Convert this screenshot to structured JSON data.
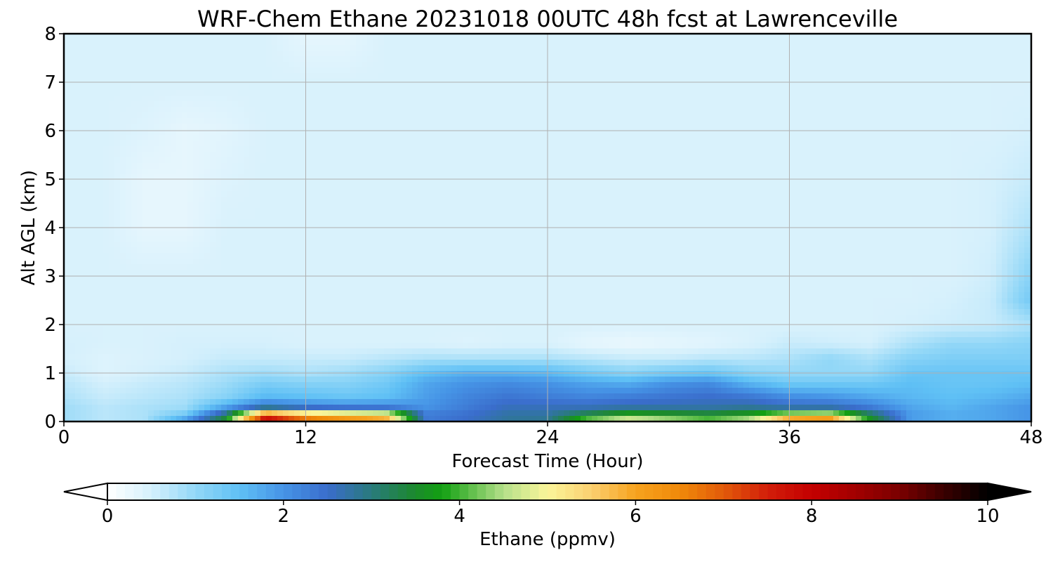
{
  "chart_data": {
    "type": "heatmap",
    "subtype": "filled-contour time-height cross section",
    "title": "WRF-Chem Ethane  20231018 00UTC 48h fcst at Lawrenceville",
    "xlabel": "Forecast Time (Hour)",
    "ylabel": "Alt AGL (km)",
    "xlim": [
      0,
      48
    ],
    "ylim": [
      0,
      8
    ],
    "xticks": [
      0,
      12,
      24,
      36,
      48
    ],
    "yticks": [
      0,
      1,
      2,
      3,
      4,
      5,
      6,
      7,
      8
    ],
    "grid": true,
    "colorbar": {
      "label": "Ethane  (ppmv)",
      "range": [
        0,
        10
      ],
      "ticks": [
        0,
        2,
        4,
        6,
        8,
        10
      ],
      "extend": "both",
      "orientation": "horizontal",
      "stops": [
        {
          "value": 0.0,
          "color": "#ffffff"
        },
        {
          "value": 0.5,
          "color": "#d5f0fc"
        },
        {
          "value": 1.0,
          "color": "#92d7f7"
        },
        {
          "value": 1.5,
          "color": "#5fc0f5"
        },
        {
          "value": 2.0,
          "color": "#4694e6"
        },
        {
          "value": 2.5,
          "color": "#3a6dcc"
        },
        {
          "value": 3.0,
          "color": "#297a7c"
        },
        {
          "value": 3.5,
          "color": "#1c8a2c"
        },
        {
          "value": 3.8,
          "color": "#12a012"
        },
        {
          "value": 4.5,
          "color": "#b5e08a"
        },
        {
          "value": 5.0,
          "color": "#fbf59a"
        },
        {
          "value": 5.5,
          "color": "#fbd070"
        },
        {
          "value": 6.0,
          "color": "#f7a21e"
        },
        {
          "value": 6.5,
          "color": "#f08a0a"
        },
        {
          "value": 7.0,
          "color": "#e25a0a"
        },
        {
          "value": 7.5,
          "color": "#d21e0a"
        },
        {
          "value": 8.0,
          "color": "#c40000"
        },
        {
          "value": 8.5,
          "color": "#a20000"
        },
        {
          "value": 9.0,
          "color": "#7a0000"
        },
        {
          "value": 9.5,
          "color": "#3a0000"
        },
        {
          "value": 10.0,
          "color": "#000000"
        }
      ]
    },
    "z_grid": {
      "x": [
        0,
        2,
        4,
        6,
        8,
        10,
        12,
        14,
        16,
        18,
        20,
        22,
        24,
        26,
        28,
        30,
        32,
        34,
        36,
        38,
        40,
        42,
        44,
        46,
        48
      ],
      "y": [
        0,
        0.1,
        0.2,
        0.3,
        0.5,
        0.8,
        1.0,
        1.3,
        1.6,
        2.0,
        2.5,
        3.0,
        4.0,
        5.0,
        6.0,
        7.0,
        8.0
      ],
      "z": [
        [
          0.9,
          0.7,
          0.8,
          2.1,
          3.6,
          8.2,
          7.0,
          6.4,
          6.0,
          2.3,
          2.5,
          2.8,
          2.9,
          4.4,
          5.1,
          4.8,
          4.3,
          4.9,
          6.6,
          6.8,
          3.8,
          1.9,
          1.7,
          1.8,
          2.0
        ],
        [
          0.9,
          0.7,
          0.8,
          1.5,
          3.3,
          7.5,
          6.4,
          6.0,
          5.7,
          2.3,
          2.5,
          2.8,
          2.8,
          3.8,
          4.3,
          4.0,
          3.8,
          4.1,
          5.4,
          5.6,
          3.5,
          1.9,
          1.7,
          1.8,
          2.0
        ],
        [
          0.9,
          0.7,
          0.8,
          1.1,
          2.6,
          5.2,
          4.6,
          4.4,
          4.2,
          2.2,
          2.4,
          2.7,
          2.7,
          3.0,
          3.4,
          3.3,
          3.2,
          3.4,
          3.8,
          3.9,
          2.9,
          1.9,
          1.7,
          1.8,
          2.0
        ],
        [
          0.9,
          0.7,
          0.8,
          0.9,
          1.8,
          2.6,
          2.3,
          2.2,
          2.2,
          2.0,
          2.3,
          2.6,
          2.6,
          2.6,
          2.7,
          2.7,
          2.7,
          2.8,
          2.6,
          2.6,
          2.3,
          1.8,
          1.6,
          1.8,
          2.0
        ],
        [
          0.8,
          0.6,
          0.7,
          0.8,
          1.1,
          1.6,
          1.5,
          1.4,
          1.5,
          1.9,
          2.2,
          2.4,
          2.3,
          2.2,
          2.3,
          2.4,
          2.5,
          2.4,
          2.1,
          2.0,
          1.8,
          1.6,
          1.5,
          1.6,
          1.8
        ],
        [
          0.7,
          0.5,
          0.6,
          0.7,
          0.9,
          1.2,
          1.1,
          1.1,
          1.3,
          1.8,
          2.0,
          2.1,
          2.0,
          1.8,
          1.7,
          2.0,
          2.1,
          1.6,
          1.3,
          1.3,
          1.3,
          1.5,
          1.4,
          1.4,
          1.5
        ],
        [
          0.6,
          0.4,
          0.5,
          0.6,
          0.8,
          0.9,
          0.8,
          0.9,
          1.1,
          1.5,
          1.7,
          1.7,
          1.6,
          1.3,
          1.1,
          1.3,
          1.4,
          1.1,
          1.0,
          1.0,
          1.0,
          1.4,
          1.4,
          1.4,
          1.4
        ],
        [
          0.5,
          0.4,
          0.45,
          0.5,
          0.6,
          0.6,
          0.6,
          0.6,
          0.7,
          0.8,
          0.8,
          0.8,
          0.8,
          0.7,
          0.6,
          0.6,
          0.7,
          0.7,
          0.8,
          1.0,
          0.8,
          1.1,
          1.2,
          1.2,
          1.2
        ],
        [
          0.5,
          0.45,
          0.45,
          0.5,
          0.5,
          0.5,
          0.45,
          0.45,
          0.45,
          0.45,
          0.4,
          0.45,
          0.45,
          0.3,
          0.25,
          0.3,
          0.35,
          0.45,
          0.6,
          0.55,
          0.5,
          0.8,
          1.0,
          1.0,
          1.1
        ],
        [
          0.45,
          0.45,
          0.45,
          0.45,
          0.45,
          0.45,
          0.45,
          0.45,
          0.45,
          0.45,
          0.45,
          0.45,
          0.45,
          0.45,
          0.45,
          0.45,
          0.45,
          0.45,
          0.45,
          0.45,
          0.45,
          0.5,
          0.55,
          0.6,
          0.8
        ],
        [
          0.45,
          0.45,
          0.45,
          0.45,
          0.45,
          0.45,
          0.45,
          0.45,
          0.45,
          0.45,
          0.45,
          0.45,
          0.45,
          0.45,
          0.45,
          0.45,
          0.45,
          0.45,
          0.45,
          0.45,
          0.45,
          0.45,
          0.5,
          0.6,
          1.3
        ],
        [
          0.45,
          0.45,
          0.45,
          0.45,
          0.45,
          0.45,
          0.45,
          0.45,
          0.45,
          0.45,
          0.45,
          0.45,
          0.45,
          0.45,
          0.45,
          0.45,
          0.45,
          0.45,
          0.45,
          0.45,
          0.45,
          0.45,
          0.45,
          0.55,
          1.1
        ],
        [
          0.45,
          0.45,
          0.3,
          0.3,
          0.45,
          0.45,
          0.45,
          0.45,
          0.45,
          0.45,
          0.45,
          0.45,
          0.45,
          0.45,
          0.45,
          0.45,
          0.45,
          0.45,
          0.45,
          0.45,
          0.45,
          0.45,
          0.45,
          0.5,
          0.8
        ],
        [
          0.45,
          0.45,
          0.3,
          0.3,
          0.4,
          0.45,
          0.45,
          0.45,
          0.45,
          0.45,
          0.45,
          0.45,
          0.45,
          0.45,
          0.45,
          0.45,
          0.45,
          0.45,
          0.45,
          0.45,
          0.45,
          0.45,
          0.45,
          0.5,
          0.6
        ],
        [
          0.45,
          0.45,
          0.4,
          0.3,
          0.35,
          0.45,
          0.45,
          0.45,
          0.45,
          0.45,
          0.45,
          0.45,
          0.45,
          0.45,
          0.45,
          0.45,
          0.45,
          0.45,
          0.45,
          0.45,
          0.45,
          0.45,
          0.45,
          0.45,
          0.5
        ],
        [
          0.45,
          0.45,
          0.45,
          0.45,
          0.45,
          0.45,
          0.45,
          0.45,
          0.45,
          0.45,
          0.45,
          0.45,
          0.45,
          0.45,
          0.45,
          0.45,
          0.45,
          0.45,
          0.45,
          0.45,
          0.45,
          0.45,
          0.45,
          0.45,
          0.45
        ],
        [
          0.45,
          0.45,
          0.45,
          0.45,
          0.45,
          0.45,
          0.3,
          0.3,
          0.45,
          0.45,
          0.45,
          0.45,
          0.45,
          0.45,
          0.45,
          0.45,
          0.45,
          0.45,
          0.45,
          0.45,
          0.45,
          0.45,
          0.45,
          0.45,
          0.45
        ]
      ]
    }
  }
}
